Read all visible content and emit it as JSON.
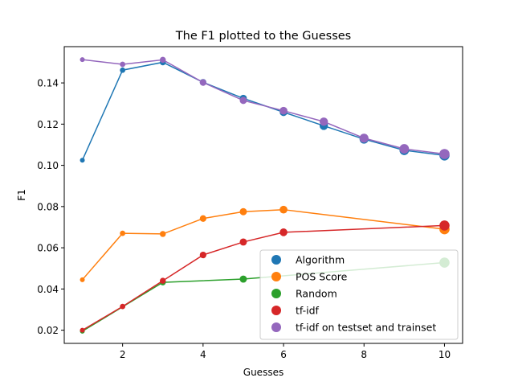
{
  "chart_data": {
    "type": "line",
    "title": "The F1 plotted to the Guesses",
    "xlabel": "Guesses",
    "ylabel": "F1",
    "xlim": [
      0.55,
      10.45
    ],
    "ylim": [
      0.0136,
      0.1576
    ],
    "xticks": [
      2,
      4,
      6,
      8,
      10
    ],
    "yticks": [
      0.02,
      0.04,
      0.06,
      0.08,
      0.1,
      0.12,
      0.14
    ],
    "ytick_labels": [
      "0.02",
      "0.04",
      "0.06",
      "0.08",
      "0.10",
      "0.12",
      "0.14"
    ],
    "grid": false,
    "legend_position": "lower-right",
    "series": [
      {
        "name": "Algorithm",
        "color": "#1f77b4",
        "x": [
          1,
          2,
          3,
          4,
          5,
          6,
          7,
          8,
          9,
          10
        ],
        "y": [
          0.1025,
          0.1462,
          0.15,
          0.1403,
          0.1325,
          0.1258,
          0.1192,
          0.1127,
          0.1073,
          0.1048
        ]
      },
      {
        "name": "POS Score",
        "color": "#ff7f0e",
        "x": [
          1,
          2,
          3,
          4,
          5,
          6,
          10
        ],
        "y": [
          0.0445,
          0.067,
          0.0667,
          0.0742,
          0.0775,
          0.0785,
          0.069
        ]
      },
      {
        "name": "Random",
        "color": "#2ca02c",
        "x": [
          1,
          3,
          5,
          10
        ],
        "y": [
          0.0195,
          0.0432,
          0.0448,
          0.0528
        ]
      },
      {
        "name": "tf-idf",
        "color": "#d62728",
        "x": [
          1,
          2,
          3,
          4,
          5,
          6,
          10
        ],
        "y": [
          0.02,
          0.0315,
          0.044,
          0.0565,
          0.0628,
          0.0675,
          0.0708
        ]
      },
      {
        "name": "tf-idf on testset and trainset",
        "color": "#9467bd",
        "x": [
          1,
          2,
          3,
          4,
          5,
          6,
          7,
          8,
          9,
          10
        ],
        "y": [
          0.1513,
          0.149,
          0.1512,
          0.1402,
          0.1315,
          0.1265,
          0.1212,
          0.1132,
          0.108,
          0.1055
        ]
      }
    ]
  }
}
